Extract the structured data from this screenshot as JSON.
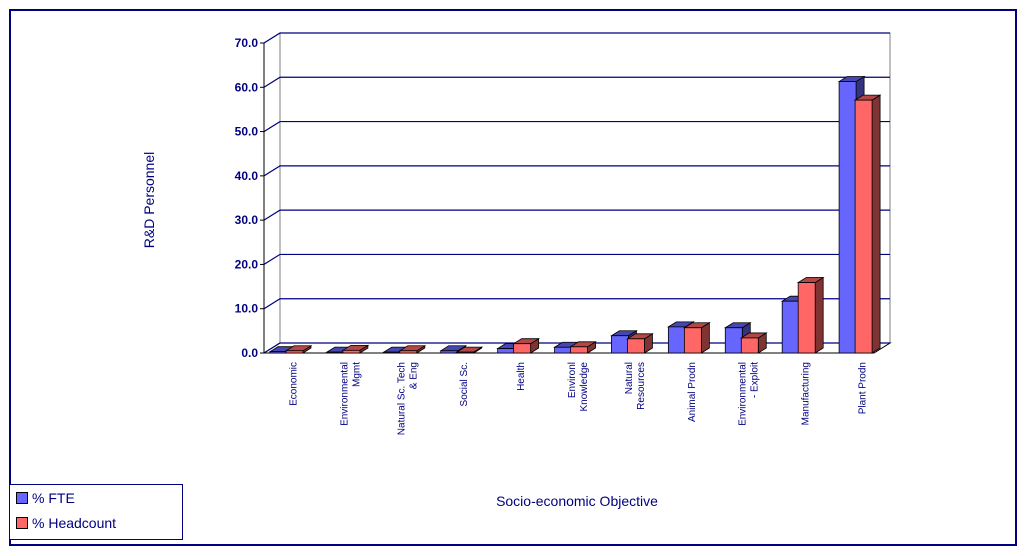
{
  "chart_data": {
    "type": "bar",
    "xlabel": "Socio-economic Objective",
    "ylabel": "R&D Personnel",
    "ylim": [
      0,
      70
    ],
    "yticks": [
      "0.0",
      "10.0",
      "20.0",
      "30.0",
      "40.0",
      "50.0",
      "60.0",
      "70.0"
    ],
    "grid": true,
    "legend_position": "bottom-left",
    "categories": [
      [
        "Economic"
      ],
      [
        "Environmental",
        "Mgmt"
      ],
      [
        "Natural Sc. Tech",
        "& Eng"
      ],
      [
        "Social Sc."
      ],
      [
        "Health"
      ],
      [
        "Environl",
        "Knowledge"
      ],
      [
        "Natural",
        "Resources"
      ],
      [
        "Animal Prodn"
      ],
      [
        "Environmental",
        "- Exploit"
      ],
      [
        "Manufacturing"
      ],
      [
        "Plant Prodn"
      ]
    ],
    "series": [
      {
        "name": "% FTE",
        "color": "#6666ff",
        "values": [
          0.3,
          0.2,
          0.2,
          0.5,
          1.0,
          1.3,
          3.9,
          5.9,
          5.7,
          11.7,
          61.3
        ]
      },
      {
        "name": "% Headcount",
        "color": "#ff6666",
        "values": [
          0.5,
          0.6,
          0.5,
          0.2,
          2.1,
          1.4,
          3.2,
          5.7,
          3.4,
          15.9,
          57.1
        ]
      }
    ]
  }
}
